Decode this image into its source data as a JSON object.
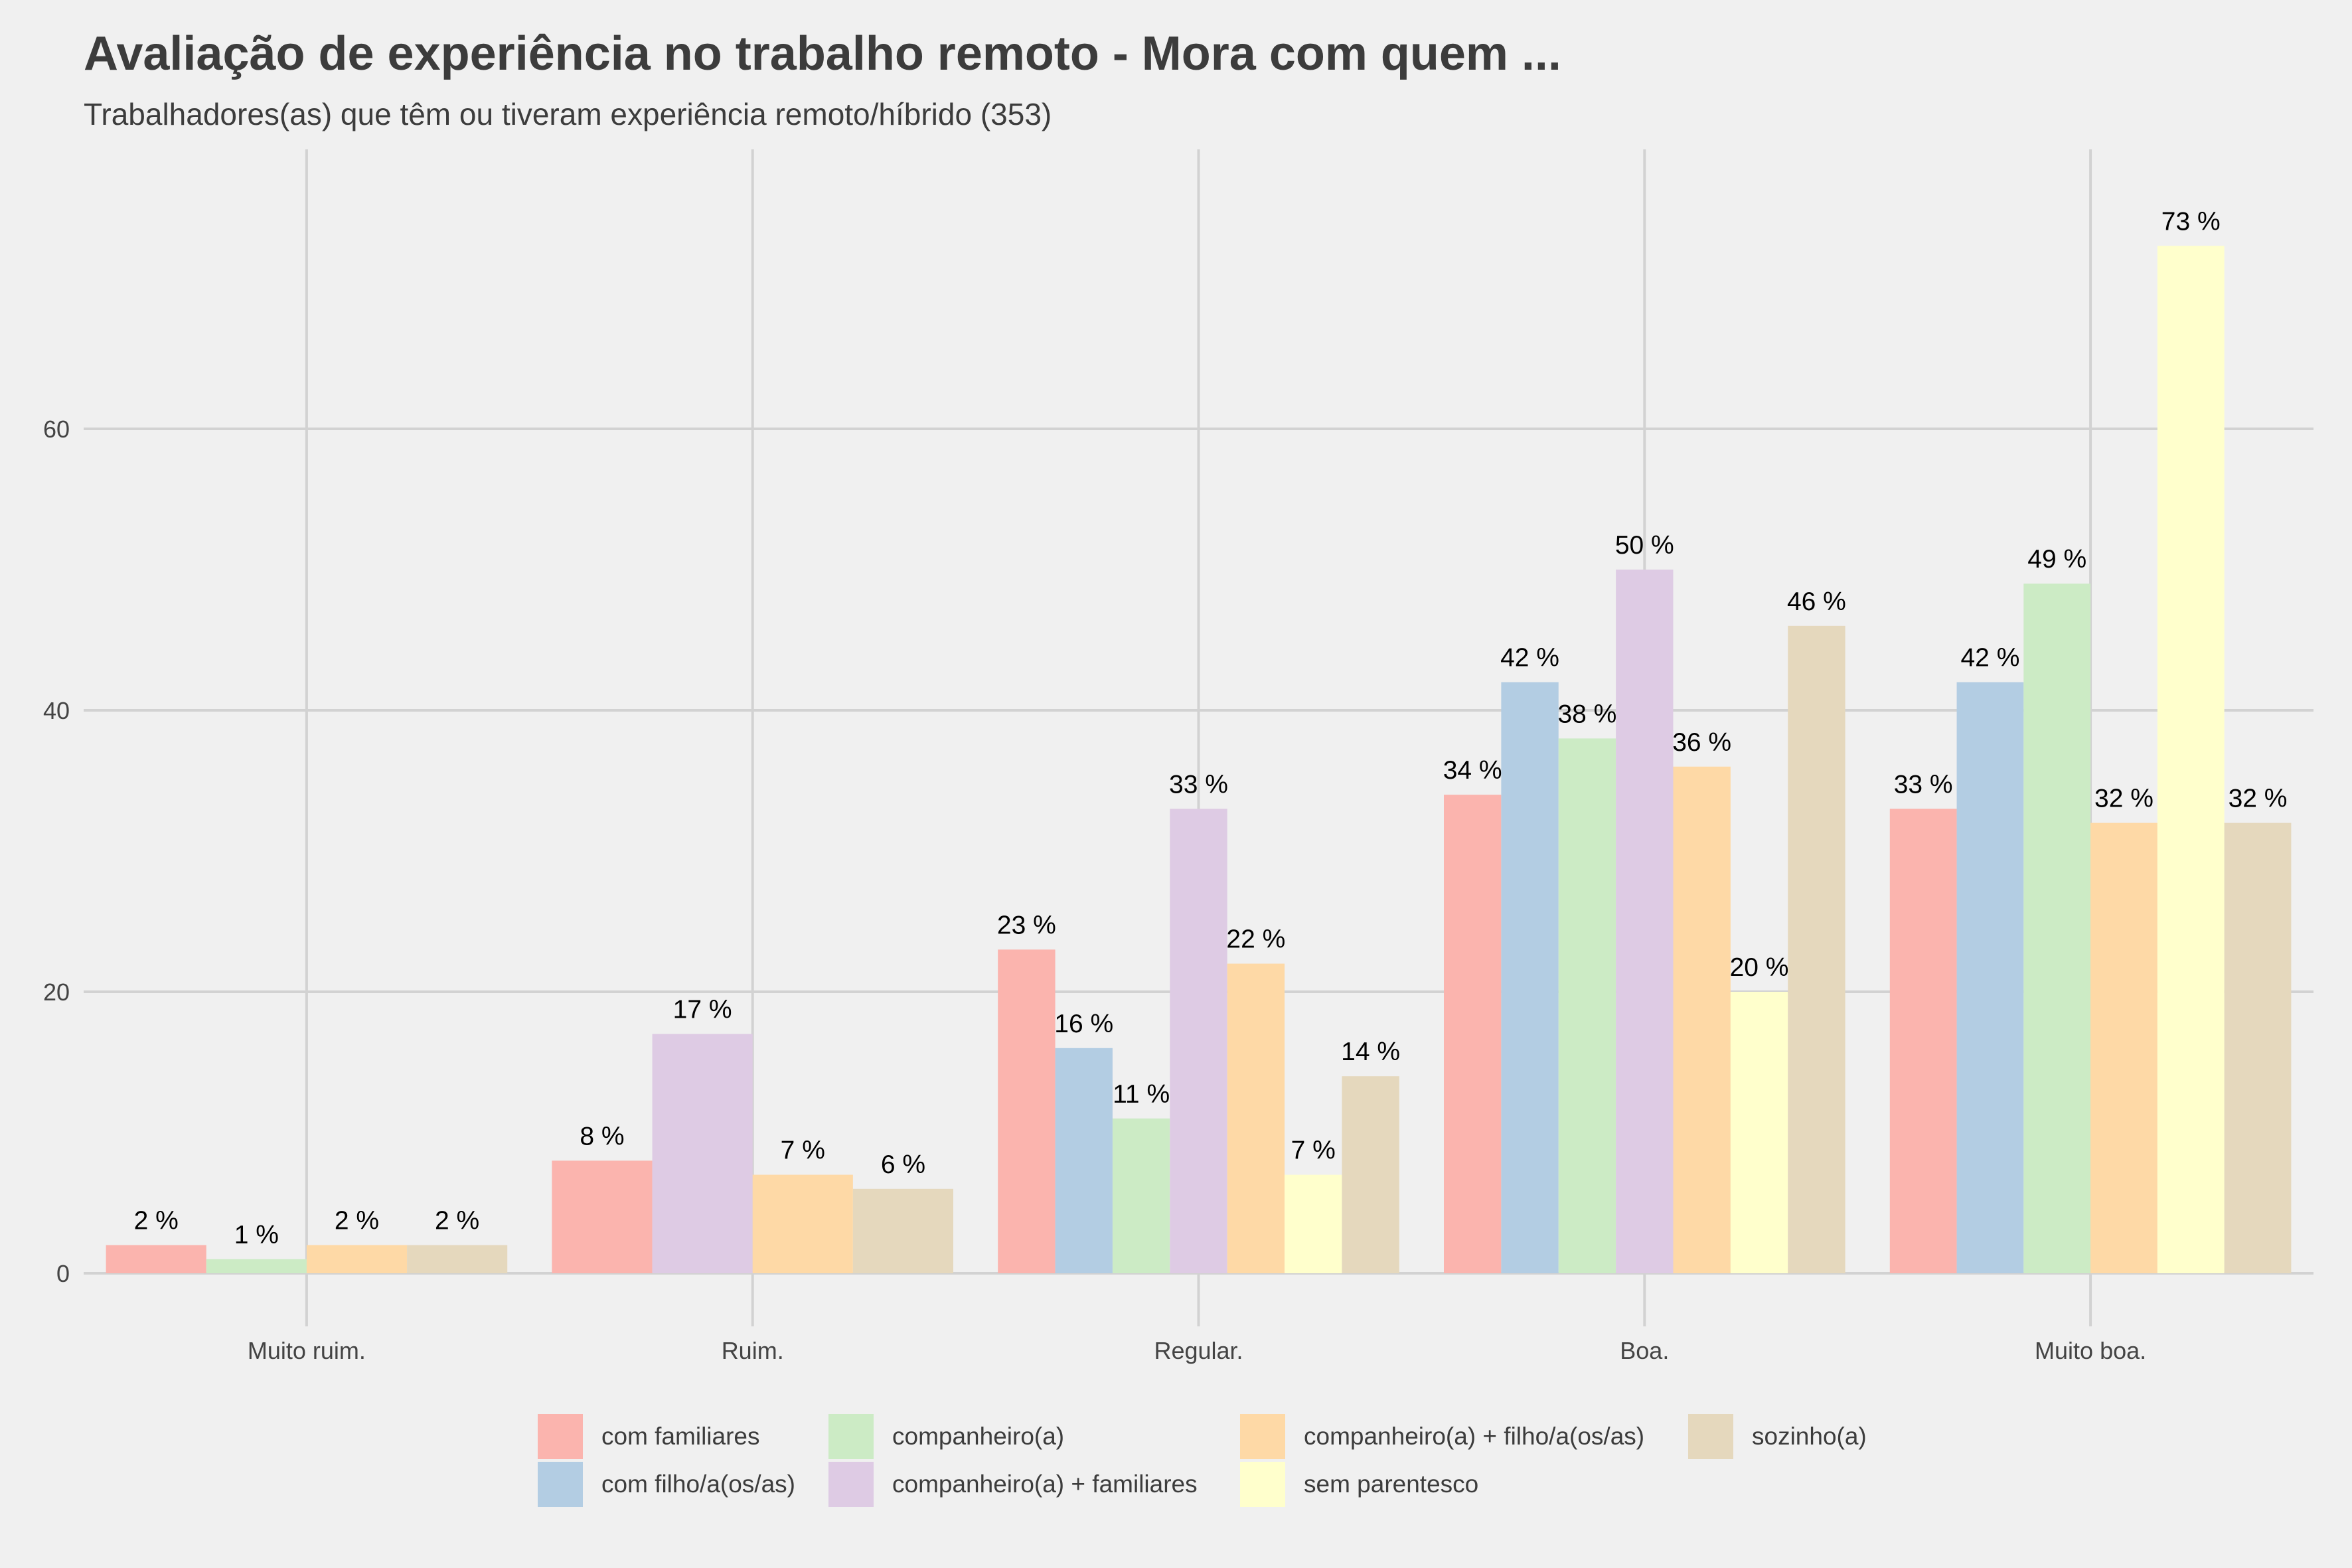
{
  "title": "Avaliação de experiência no trabalho remoto - Mora com quem ...",
  "subtitle": "Trabalhadores(as) que têm ou tiveram experiência remoto/híbrido (353)",
  "chart_data": {
    "type": "bar",
    "title": "Avaliação de experiência no trabalho remoto - Mora com quem ...",
    "subtitle": "Trabalhadores(as) que têm ou tiveram experiência remoto/híbrido (353)",
    "xlabel": "",
    "ylabel": "",
    "ylim": [
      0,
      80
    ],
    "yticks": [
      0,
      20,
      40,
      60
    ],
    "ytick_labels": [
      "0",
      "20",
      "40",
      "60"
    ],
    "grid": true,
    "legend_position": "bottom",
    "categories": [
      "Muito ruim.",
      "Ruim.",
      "Regular.",
      "Boa.",
      "Muito boa."
    ],
    "series": [
      {
        "name": "com familiares",
        "color": "#FBB4AE",
        "values": [
          2,
          8,
          23,
          34,
          33
        ]
      },
      {
        "name": "com filho/a(os/as)",
        "color": "#B3CDE3",
        "values": [
          null,
          null,
          16,
          42,
          42
        ]
      },
      {
        "name": "companheiro(a)",
        "color": "#CCEBC5",
        "values": [
          1,
          null,
          11,
          38,
          49
        ]
      },
      {
        "name": "companheiro(a) + familiares",
        "color": "#DECBE4",
        "values": [
          null,
          17,
          33,
          50,
          null
        ]
      },
      {
        "name": "companheiro(a) + filho/a(os/as)",
        "color": "#FED9A6",
        "values": [
          2,
          7,
          22,
          36,
          32
        ]
      },
      {
        "name": "sem parentesco",
        "color": "#FFFFCC",
        "values": [
          null,
          null,
          7,
          20,
          73
        ]
      },
      {
        "name": "sozinho(a)",
        "color": "#E5D8BD",
        "values": [
          2,
          6,
          14,
          46,
          32
        ]
      }
    ],
    "label_suffix": " %"
  }
}
